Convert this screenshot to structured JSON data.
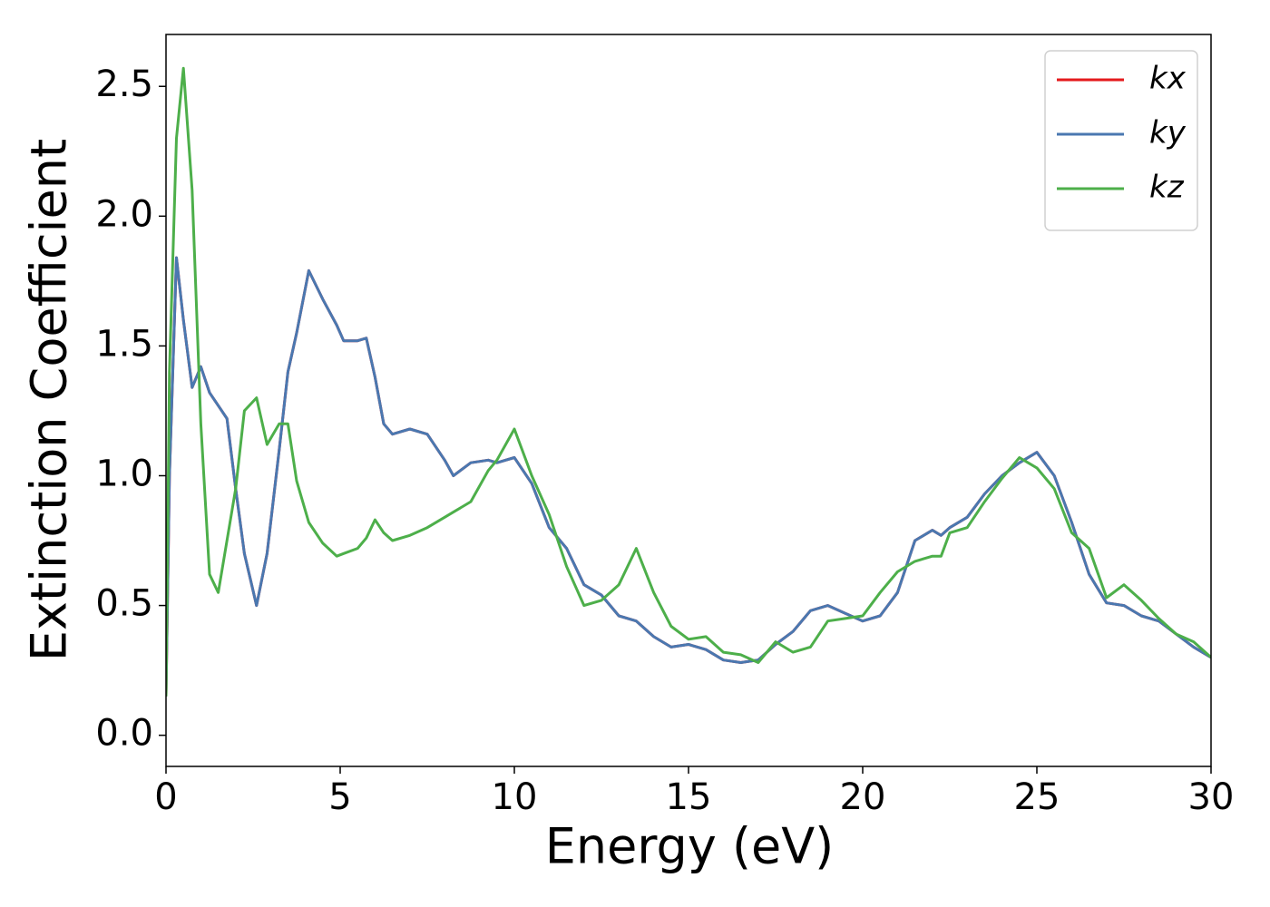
{
  "chart_data": {
    "type": "line",
    "xlabel": "Energy (eV)",
    "ylabel": "Extinction Coefficient",
    "x": [
      0,
      0.1,
      0.3,
      0.5,
      0.75,
      1.0,
      1.25,
      1.5,
      1.75,
      2.0,
      2.25,
      2.6,
      2.9,
      3.25,
      3.5,
      3.75,
      4.1,
      4.5,
      4.9,
      5.1,
      5.5,
      5.75,
      6.0,
      6.25,
      6.5,
      7.0,
      7.5,
      8.0,
      8.25,
      8.75,
      9.25,
      9.5,
      10.0,
      10.5,
      11.0,
      11.5,
      12.0,
      12.5,
      13.0,
      13.5,
      14.0,
      14.5,
      15.0,
      15.5,
      16.0,
      16.5,
      17.0,
      17.5,
      18.0,
      18.5,
      19.0,
      19.5,
      20.0,
      20.5,
      21.0,
      21.5,
      22.0,
      22.25,
      22.5,
      23.0,
      23.5,
      24.0,
      24.5,
      25.0,
      25.5,
      26.0,
      26.5,
      27.0,
      27.5,
      28.0,
      28.5,
      29.0,
      29.5,
      30.0
    ],
    "series": [
      {
        "name": "kx",
        "color": "#e41a1c",
        "values": [
          0.15,
          1.0,
          1.84,
          1.6,
          1.34,
          1.42,
          1.32,
          1.27,
          1.22,
          0.95,
          0.7,
          0.5,
          0.7,
          1.1,
          1.4,
          1.55,
          1.79,
          1.68,
          1.58,
          1.52,
          1.52,
          1.53,
          1.38,
          1.2,
          1.16,
          1.18,
          1.16,
          1.06,
          1.0,
          1.05,
          1.06,
          1.05,
          1.07,
          0.97,
          0.8,
          0.72,
          0.58,
          0.54,
          0.46,
          0.44,
          0.38,
          0.34,
          0.35,
          0.33,
          0.29,
          0.28,
          0.29,
          0.35,
          0.4,
          0.48,
          0.5,
          0.47,
          0.44,
          0.46,
          0.55,
          0.75,
          0.79,
          0.77,
          0.8,
          0.84,
          0.93,
          1.0,
          1.05,
          1.09,
          1.0,
          0.82,
          0.62,
          0.51,
          0.5,
          0.46,
          0.44,
          0.39,
          0.34,
          0.3
        ]
      },
      {
        "name": "ky",
        "color": "#4a78b0",
        "values": [
          0.15,
          1.0,
          1.84,
          1.6,
          1.34,
          1.42,
          1.32,
          1.27,
          1.22,
          0.95,
          0.7,
          0.5,
          0.7,
          1.1,
          1.4,
          1.55,
          1.79,
          1.68,
          1.58,
          1.52,
          1.52,
          1.53,
          1.38,
          1.2,
          1.16,
          1.18,
          1.16,
          1.06,
          1.0,
          1.05,
          1.06,
          1.05,
          1.07,
          0.97,
          0.8,
          0.72,
          0.58,
          0.54,
          0.46,
          0.44,
          0.38,
          0.34,
          0.35,
          0.33,
          0.29,
          0.28,
          0.29,
          0.35,
          0.4,
          0.48,
          0.5,
          0.47,
          0.44,
          0.46,
          0.55,
          0.75,
          0.79,
          0.77,
          0.8,
          0.84,
          0.93,
          1.0,
          1.05,
          1.09,
          1.0,
          0.82,
          0.62,
          0.51,
          0.5,
          0.46,
          0.44,
          0.39,
          0.34,
          0.3
        ]
      },
      {
        "name": "kz",
        "color": "#4daf4a",
        "values": [
          0.15,
          1.4,
          2.3,
          2.57,
          2.1,
          1.2,
          0.62,
          0.55,
          0.75,
          0.95,
          1.25,
          1.3,
          1.12,
          1.2,
          1.2,
          0.98,
          0.82,
          0.74,
          0.69,
          0.7,
          0.72,
          0.76,
          0.83,
          0.78,
          0.75,
          0.77,
          0.8,
          0.84,
          0.86,
          0.9,
          1.02,
          1.06,
          1.18,
          1.0,
          0.85,
          0.65,
          0.5,
          0.52,
          0.58,
          0.72,
          0.55,
          0.42,
          0.37,
          0.38,
          0.32,
          0.31,
          0.28,
          0.36,
          0.32,
          0.34,
          0.44,
          0.45,
          0.46,
          0.55,
          0.63,
          0.67,
          0.69,
          0.69,
          0.78,
          0.8,
          0.9,
          0.99,
          1.07,
          1.03,
          0.95,
          0.78,
          0.72,
          0.53,
          0.58,
          0.52,
          0.45,
          0.39,
          0.36,
          0.3
        ]
      }
    ],
    "xlim": [
      0,
      30
    ],
    "xticks": [
      0,
      5,
      10,
      15,
      20,
      25,
      30
    ],
    "ylim": [
      -0.12,
      2.7
    ],
    "yticks": [
      {
        "value": 0,
        "label": "0.0"
      },
      0.5,
      {
        "value": 1,
        "label": "1.0"
      },
      1.5,
      {
        "value": 2,
        "label": "2.0"
      },
      2.5
    ],
    "grid": false,
    "legend": "upper right"
  }
}
